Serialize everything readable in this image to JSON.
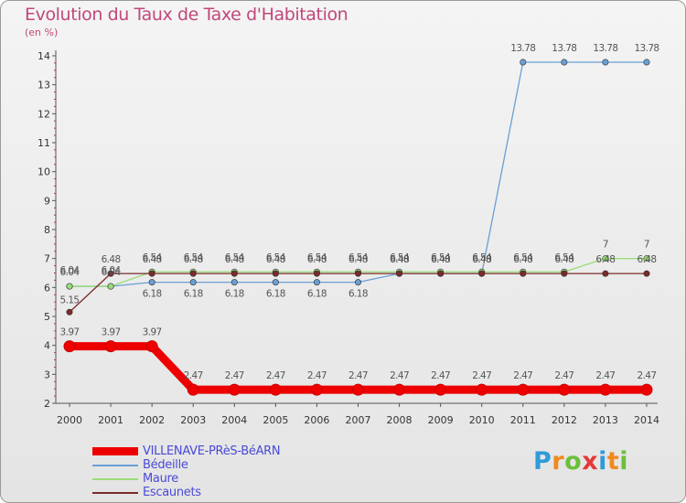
{
  "chart_data": {
    "type": "line",
    "title": "Evolution du Taux de Taxe d'Habitation",
    "subtitle": "(en %)",
    "xlabel": "",
    "ylabel": "",
    "x": [
      "2000",
      "2001",
      "2002",
      "2003",
      "2004",
      "2005",
      "2006",
      "2007",
      "2008",
      "2009",
      "2010",
      "2011",
      "2012",
      "2013",
      "2014"
    ],
    "ylim": [
      2,
      14
    ],
    "yticks": [
      "2",
      "3",
      "4",
      "5",
      "6",
      "7",
      "8",
      "9",
      "10",
      "11",
      "12",
      "13",
      "14"
    ],
    "series": [
      {
        "name": "VILLENAVE-PRèS-BéARN",
        "color": "#ee0000",
        "values": [
          3.97,
          3.97,
          3.97,
          2.47,
          2.47,
          2.47,
          2.47,
          2.47,
          2.47,
          2.47,
          2.47,
          2.47,
          2.47,
          2.47,
          2.47
        ],
        "labels": [
          "3.97",
          "3.97",
          "3.97",
          "2.47",
          "2.47",
          "2.47",
          "2.47",
          "2.47",
          "2.47",
          "2.47",
          "2.47",
          "2.47",
          "2.47",
          "2.47",
          "2.47"
        ]
      },
      {
        "name": "Bédeille",
        "color": "#6a9fd4",
        "values": [
          6.04,
          6.04,
          6.18,
          6.18,
          6.18,
          6.18,
          6.18,
          6.18,
          6.48,
          6.48,
          6.48,
          13.78,
          13.78,
          13.78,
          13.78
        ],
        "labels": [
          "6.04",
          "6.04",
          "6.18",
          "6.18",
          "6.18",
          "6.18",
          "6.18",
          "6.18",
          "6.48",
          "6.48",
          "6.48",
          "13.78",
          "13.78",
          "13.78",
          "13.78"
        ]
      },
      {
        "name": "Maure",
        "color": "#99dd77",
        "values": [
          6.04,
          6.04,
          6.54,
          6.54,
          6.54,
          6.54,
          6.54,
          6.54,
          6.54,
          6.54,
          6.54,
          6.54,
          6.54,
          7,
          7
        ],
        "labels": [
          "6.04",
          "6.04",
          "6.54",
          "6.54",
          "6.54",
          "6.54",
          "6.54",
          "6.54",
          "6.54",
          "6.54",
          "6.54",
          "6.54",
          "6.54",
          "7",
          "7"
        ]
      },
      {
        "name": "Escaunets",
        "color": "#7a2a2a",
        "values": [
          5.15,
          6.48,
          6.48,
          6.48,
          6.48,
          6.48,
          6.48,
          6.48,
          6.48,
          6.48,
          6.48,
          6.48,
          6.48,
          6.48,
          6.48
        ],
        "labels": [
          "5.15",
          "6.48",
          "6.48",
          "6.48",
          "6.48",
          "6.48",
          "6.48",
          "6.48",
          "6.48",
          "6.48",
          "6.48",
          "6.48",
          "6.48",
          "6.48",
          "6.48"
        ]
      }
    ]
  },
  "logo": {
    "letters": [
      "P",
      "r",
      "o",
      "x",
      "i",
      "t",
      "i"
    ],
    "colors": [
      "#2f9bd8",
      "#f08a1c",
      "#6cbf3a",
      "#e53935",
      "#2f9bd8",
      "#f08a1c",
      "#6cbf3a"
    ]
  }
}
